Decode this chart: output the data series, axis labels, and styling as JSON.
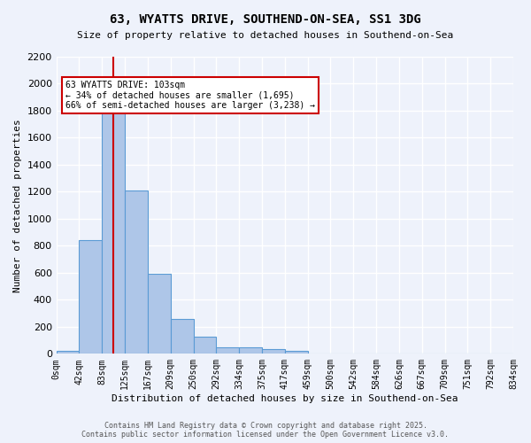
{
  "title1": "63, WYATTS DRIVE, SOUTHEND-ON-SEA, SS1 3DG",
  "title2": "Size of property relative to detached houses in Southend-on-Sea",
  "xlabel": "Distribution of detached houses by size in Southend-on-Sea",
  "ylabel": "Number of detached properties",
  "bar_values": [
    25,
    845,
    1810,
    1210,
    590,
    255,
    125,
    50,
    45,
    35,
    20,
    0,
    0,
    0,
    0,
    0,
    0,
    0,
    0,
    0
  ],
  "bin_labels": [
    "0sqm",
    "42sqm",
    "83sqm",
    "125sqm",
    "167sqm",
    "209sqm",
    "250sqm",
    "292sqm",
    "334sqm",
    "375sqm",
    "417sqm",
    "459sqm",
    "500sqm",
    "542sqm",
    "584sqm",
    "626sqm",
    "667sqm",
    "709sqm",
    "751sqm",
    "792sqm",
    "834sqm"
  ],
  "bar_color": "#aec6e8",
  "bar_edge_color": "#5b9bd5",
  "bg_color": "#eef2fb",
  "grid_color": "#ffffff",
  "vline_x": 103,
  "vline_color": "#cc0000",
  "annotation_text": "63 WYATTS DRIVE: 103sqm\n← 34% of detached houses are smaller (1,695)\n66% of semi-detached houses are larger (3,238) →",
  "annotation_box_color": "#cc0000",
  "ylim": [
    0,
    2200
  ],
  "yticks": [
    0,
    200,
    400,
    600,
    800,
    1000,
    1200,
    1400,
    1600,
    1800,
    2000,
    2200
  ],
  "footer": "Contains HM Land Registry data © Crown copyright and database right 2025.\nContains public sector information licensed under the Open Government Licence v3.0.",
  "bin_width": 41.5
}
